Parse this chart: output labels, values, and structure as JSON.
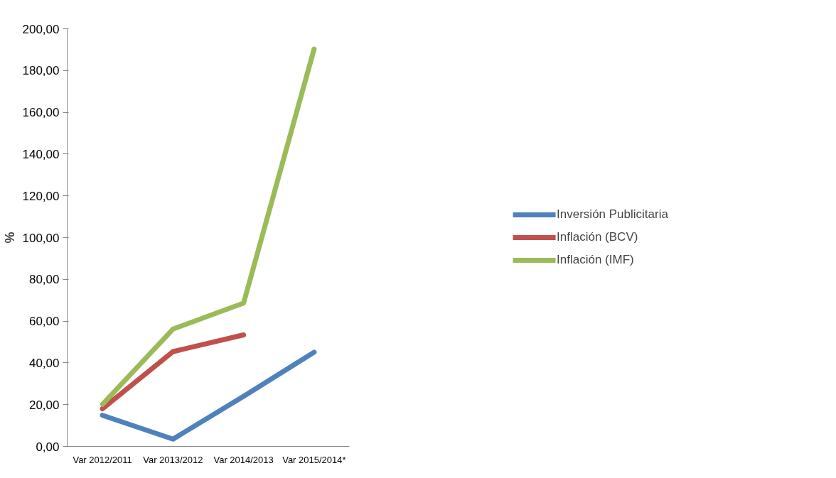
{
  "chart_data": {
    "type": "line",
    "ylabel": "%",
    "categories": [
      "Var 2012/2011",
      "Var 2013/2012",
      "Var 2014/2013",
      "Var 2015/2014*"
    ],
    "ylim": [
      0,
      200
    ],
    "yticks": [
      {
        "value": 0,
        "label": "0,00"
      },
      {
        "value": 20,
        "label": "20,00"
      },
      {
        "value": 40,
        "label": "40,00"
      },
      {
        "value": 60,
        "label": "60,00"
      },
      {
        "value": 80,
        "label": "80,00"
      },
      {
        "value": 100,
        "label": "100,00"
      },
      {
        "value": 120,
        "label": "120,00"
      },
      {
        "value": 140,
        "label": "140,00"
      },
      {
        "value": 160,
        "label": "160,00"
      },
      {
        "value": 180,
        "label": "180,00"
      },
      {
        "value": 200,
        "label": "200,00"
      }
    ],
    "grid": false,
    "legend": "right",
    "marker": "none",
    "line_style": "solid",
    "series": [
      {
        "name": "Inversión Publicitaria",
        "color": "#4f81bd",
        "values": [
          14.9,
          3.5,
          24,
          45.1
        ]
      },
      {
        "name": "Inflación (BCV)",
        "color": "#c0504d",
        "values": [
          18,
          45.4,
          53.4,
          null
        ]
      },
      {
        "name": "Inflación (IMF)",
        "color": "#9bbb59",
        "values": [
          20.1,
          56.2,
          68.6,
          190.3
        ]
      }
    ]
  }
}
